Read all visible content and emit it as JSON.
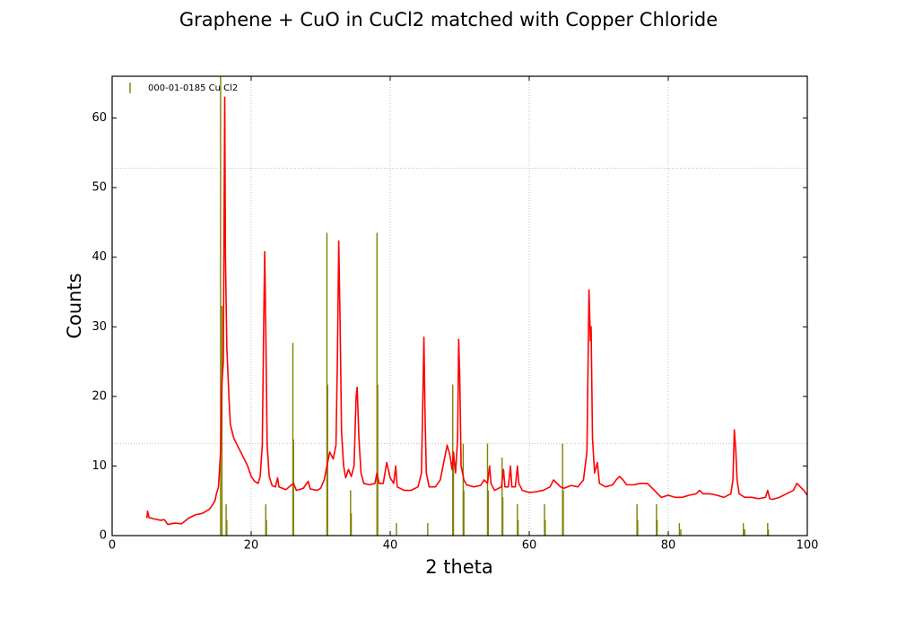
{
  "chart_data": {
    "type": "line",
    "title": "Graphene + CuO in CuCl2 matched with Copper Chloride",
    "xlabel": "2 theta",
    "ylabel": "Counts",
    "xlim": [
      0,
      100
    ],
    "ylim": [
      0,
      66
    ],
    "xticks": [
      0,
      20,
      40,
      60,
      80,
      100
    ],
    "yticks": [
      0,
      10,
      20,
      30,
      40,
      50,
      60
    ],
    "grid_x": true,
    "grid_y_lines": [
      13.2,
      52.8
    ],
    "legend": "upper left",
    "series": [
      {
        "color": "#ff0000",
        "style": "line",
        "x": [
          5,
          5.1,
          5.3,
          6,
          7,
          7.5,
          8,
          9,
          10,
          11,
          12,
          13,
          14,
          14.5,
          14.8,
          15,
          15.3,
          15.6,
          15.8,
          16.0,
          16.1,
          16.2,
          16.3,
          16.5,
          16.8,
          17,
          17.5,
          18,
          19,
          19.5,
          20,
          20.5,
          21,
          21.3,
          21.6,
          21.8,
          21.95,
          22.1,
          22.3,
          22.6,
          23,
          23.5,
          23.8,
          24,
          25,
          25.7,
          26.1,
          26.5,
          27.5,
          28.2,
          28.5,
          29.5,
          30,
          30.5,
          31,
          31.3,
          31.8,
          32.2,
          32.4,
          32.6,
          32.8,
          33.0,
          33.3,
          33.6,
          34,
          34.4,
          34.8,
          35.1,
          35.25,
          35.5,
          35.8,
          36.2,
          37,
          37.8,
          38.1,
          38.4,
          39,
          39.5,
          40,
          40.5,
          40.8,
          41,
          42,
          43,
          44,
          44.5,
          44.7,
          44.85,
          45.0,
          45.2,
          45.6,
          46.5,
          47.2,
          47.8,
          48.2,
          48.6,
          48.9,
          49.1,
          49.4,
          49.7,
          49.85,
          50.0,
          50.2,
          50.6,
          51,
          52,
          53,
          53.5,
          54,
          54.3,
          54.5,
          55,
          56,
          56.3,
          56.5,
          57,
          57.3,
          57.5,
          58,
          58.3,
          58.5,
          59,
          60,
          61,
          62,
          63,
          63.5,
          64,
          64.5,
          65,
          66,
          67,
          67.8,
          68.3,
          68.6,
          68.8,
          68.9,
          69.1,
          69.4,
          69.8,
          70.1,
          71,
          72,
          72.5,
          73,
          73.5,
          74,
          75,
          76,
          77,
          77.5,
          78,
          79,
          80,
          81,
          82,
          83,
          84,
          84.5,
          85,
          86,
          87,
          88,
          89,
          89.3,
          89.5,
          89.7,
          89.9,
          90.2,
          91,
          92,
          93,
          94,
          94.3,
          94.6,
          95,
          96,
          97,
          98,
          98.5,
          99,
          99.5,
          100
        ],
        "values": [
          2.5,
          3.5,
          2.6,
          2.4,
          2.2,
          2.3,
          1.6,
          1.8,
          1.7,
          2.5,
          3,
          3.2,
          3.8,
          4.5,
          5,
          6,
          7,
          12,
          22,
          25,
          45,
          63,
          40,
          27,
          20,
          16,
          14,
          13,
          11,
          10,
          8.5,
          7.8,
          7.5,
          8.5,
          13,
          30,
          40.8,
          30,
          13,
          8.5,
          7.2,
          7,
          8.3,
          7,
          6.6,
          7.2,
          7.5,
          6.5,
          6.8,
          7.8,
          6.7,
          6.5,
          6.8,
          8,
          10.5,
          12,
          11,
          13,
          25,
          42.3,
          30,
          15,
          10,
          8.3,
          9.5,
          8.5,
          10,
          20,
          21.3,
          14,
          9,
          7.5,
          7.3,
          7.5,
          9,
          7.5,
          7.5,
          10.5,
          8.3,
          7.5,
          10,
          7,
          6.5,
          6.5,
          7,
          9,
          20,
          28.5,
          18,
          9,
          7,
          7,
          8,
          11,
          13,
          11.5,
          9.5,
          12,
          9,
          14,
          28.2,
          23,
          10,
          8,
          7.3,
          7,
          7.2,
          8,
          7.5,
          10,
          7.5,
          6.5,
          7,
          9.5,
          7,
          7,
          10,
          7,
          7,
          10,
          7.5,
          6.5,
          6.2,
          6.3,
          6.5,
          7,
          8,
          7.5,
          7,
          6.8,
          7.2,
          7,
          8,
          12,
          35.3,
          28,
          30,
          14,
          9,
          10.5,
          7.5,
          7,
          7.3,
          8,
          8.5,
          8,
          7.3,
          7.3,
          7.5,
          7.5,
          7,
          6.5,
          5.5,
          5.8,
          5.5,
          5.5,
          5.8,
          6,
          6.5,
          6,
          6,
          5.8,
          5.5,
          6,
          8,
          15.2,
          12.5,
          8,
          6,
          5.5,
          5.5,
          5.3,
          5.5,
          6.5,
          5.3,
          5.2,
          5.5,
          6,
          6.5,
          7.5,
          7,
          6.5,
          5.8
        ]
      },
      {
        "name": "000-01-0185 Cu Cl2",
        "color": "#808000",
        "style": "stem",
        "x": [
          15.6,
          15.8,
          16.4,
          16.5,
          22.1,
          22.2,
          26.0,
          26.1,
          30.9,
          31.0,
          34.3,
          34.4,
          38.1,
          38.2,
          40.9,
          45.4,
          49.0,
          49.1,
          50.5,
          50.6,
          54.0,
          54.1,
          56.1,
          56.2,
          58.3,
          58.4,
          62.2,
          62.3,
          64.8,
          64.9,
          75.5,
          75.6,
          78.3,
          78.4,
          81.6,
          81.8,
          90.8,
          91.0,
          94.3,
          94.4
        ],
        "values": [
          100,
          33,
          4.5,
          2.2,
          4.5,
          2.2,
          27.7,
          13.8,
          43.5,
          21.7,
          6.5,
          3.2,
          43.5,
          21.7,
          1.8,
          1.8,
          21.7,
          10.8,
          13.2,
          6.5,
          13.2,
          6.5,
          11.2,
          5.5,
          4.5,
          2.2,
          4.5,
          2.2,
          13.2,
          6.5,
          4.5,
          2.2,
          4.5,
          2.2,
          1.8,
          0.9,
          1.8,
          0.9,
          1.8,
          0.9
        ]
      }
    ]
  }
}
